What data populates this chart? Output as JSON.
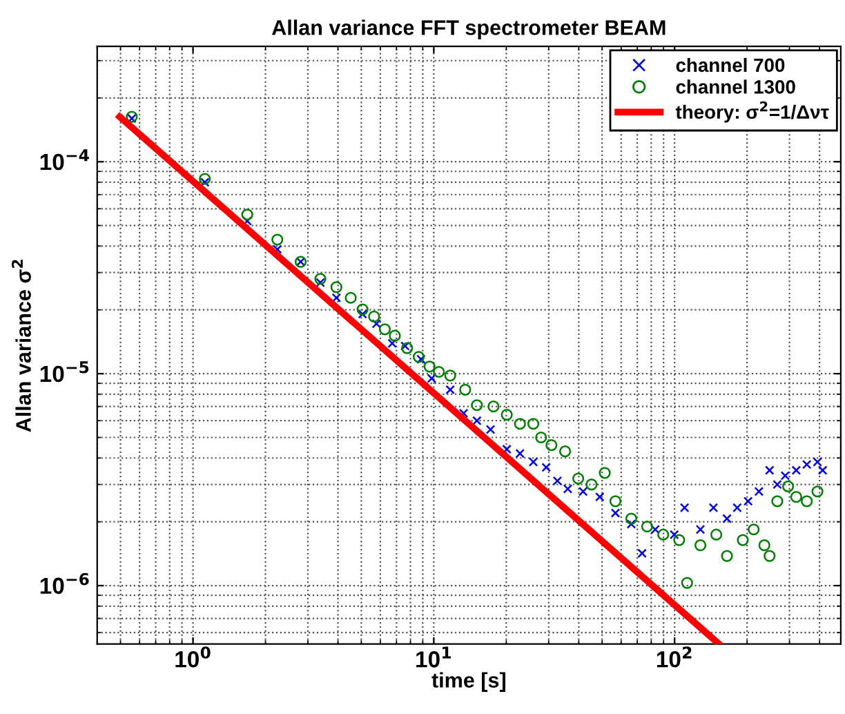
{
  "chart_data": {
    "type": "scatter",
    "title": "Allan variance FFT spectrometer BEAM",
    "xlabel": "time [s]",
    "ylabel": "Allan variance σ$^{2}$",
    "log": "xy",
    "grid": true,
    "legend": "top right",
    "xlim": [
      0.4,
      490
    ],
    "ylim": [
      5.3e-07,
      0.00035
    ],
    "xticks": [
      {
        "value": 1,
        "label": "10$^{0}$"
      },
      {
        "value": 10,
        "label": "10$^{1}$"
      },
      {
        "value": 100,
        "label": "10$^{2}$"
      }
    ],
    "yticks": [
      {
        "value": 1e-06,
        "label": "10$^{−6}$"
      },
      {
        "value": 1e-05,
        "label": "10$^{−5}$"
      },
      {
        "value": 0.0001,
        "label": "10$^{−4}$"
      }
    ],
    "series": [
      {
        "name": "channel 700",
        "marker": "cross",
        "color": "#0000ff",
        "x": [
          0.557,
          1.12,
          1.68,
          2.24,
          2.8,
          3.38,
          3.94,
          5.06,
          5.78,
          6.72,
          7.6,
          8.85,
          9.8,
          11.7,
          13.3,
          15.1,
          17.2,
          20.1,
          22.8,
          25.9,
          29.3,
          32.6,
          36.0,
          41.7,
          48.9,
          56.8,
          66.1,
          73.3,
          83.1,
          99.7,
          110,
          128,
          145,
          165,
          182,
          202,
          224,
          248,
          267,
          288,
          320,
          354,
          392,
          412
        ],
        "values": [
          0.00016,
          8e-05,
          5.25e-05,
          3.86e-05,
          3.37e-05,
          2.69e-05,
          2.28e-05,
          1.91e-05,
          1.72e-05,
          1.39e-05,
          1.35e-05,
          1.17e-05,
          9.5e-06,
          8.4e-06,
          6.5e-06,
          6e-06,
          5.45e-06,
          4.4e-06,
          4.2e-06,
          3.83e-06,
          3.61e-06,
          3.12e-06,
          2.86e-06,
          2.78e-06,
          2.62e-06,
          2.2e-06,
          1.95e-06,
          1.42e-06,
          1.84e-06,
          1.74e-06,
          2.33e-06,
          1.84e-06,
          2.33e-06,
          2.07e-06,
          2.33e-06,
          2.5e-06,
          2.78e-06,
          3.5e-06,
          3e-06,
          3.3e-06,
          3.5e-06,
          3.73e-06,
          3.83e-06,
          3.5e-06
        ]
      },
      {
        "name": "channel 1300",
        "marker": "circle",
        "color": "#008000",
        "x": [
          0.557,
          1.12,
          1.68,
          2.24,
          2.8,
          3.38,
          3.94,
          4.52,
          5.06,
          5.65,
          6.26,
          6.89,
          7.75,
          8.66,
          9.6,
          10.5,
          11.7,
          13.5,
          15.1,
          17.7,
          20.1,
          22.8,
          25.9,
          27.9,
          30.8,
          35.1,
          39.8,
          45.2,
          51.3,
          56.8,
          66.1,
          76.9,
          89.7,
          104.5,
          112.7,
          128,
          149,
          165,
          192,
          213,
          236,
          248,
          267,
          296,
          320,
          354,
          392
        ],
        "values": [
          0.000163,
          8.3e-05,
          5.63e-05,
          4.29e-05,
          3.37e-05,
          2.8e-05,
          2.56e-05,
          2.28e-05,
          2.01e-05,
          1.86e-05,
          1.62e-05,
          1.51e-05,
          1.32e-05,
          1.2e-05,
          1.08e-05,
          1.02e-05,
          9.8e-06,
          8.4e-06,
          7.1e-06,
          7e-06,
          6.4e-06,
          5.8e-06,
          5.8e-06,
          5e-06,
          4.6e-06,
          4.3e-06,
          3.2e-06,
          3e-06,
          3.4e-06,
          2.5e-06,
          2.07e-06,
          1.9e-06,
          1.74e-06,
          1.64e-06,
          1.03e-06,
          1.55e-06,
          1.74e-06,
          1.38e-06,
          1.64e-06,
          1.84e-06,
          1.55e-06,
          1.38e-06,
          2.5e-06,
          2.94e-06,
          2.62e-06,
          2.5e-06,
          2.78e-06
        ]
      },
      {
        "name": "theory: σ$^{2}$=1/Δντ",
        "type": "line",
        "marker": "none",
        "line_style": "solid",
        "color": "#ff0000",
        "x": [
          0.496,
          153
        ],
        "values": [
          0.000163,
          5.3e-07
        ]
      }
    ]
  }
}
